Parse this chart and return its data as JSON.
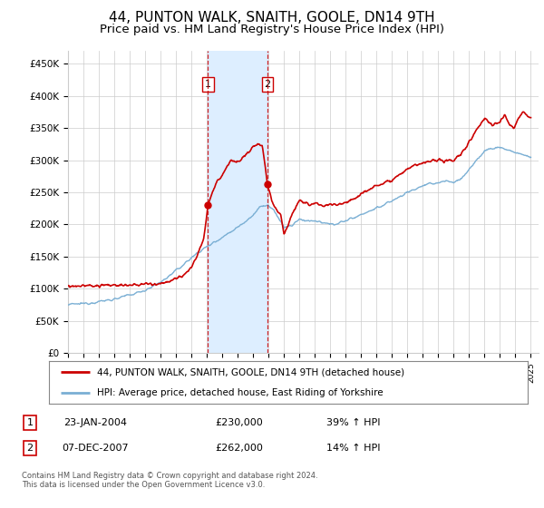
{
  "title": "44, PUNTON WALK, SNAITH, GOOLE, DN14 9TH",
  "subtitle": "Price paid vs. HM Land Registry's House Price Index (HPI)",
  "title_fontsize": 11,
  "subtitle_fontsize": 9.5,
  "ylabel_ticks": [
    "£0",
    "£50K",
    "£100K",
    "£150K",
    "£200K",
    "£250K",
    "£300K",
    "£350K",
    "£400K",
    "£450K"
  ],
  "ytick_values": [
    0,
    50000,
    100000,
    150000,
    200000,
    250000,
    300000,
    350000,
    400000,
    450000
  ],
  "ylim": [
    0,
    470000
  ],
  "xlim": [
    1995,
    2025.5
  ],
  "transaction1": {
    "date": "2004-01-23",
    "price": 230000,
    "label": "1",
    "x_year": 2004.07
  },
  "transaction2": {
    "date": "2007-12-07",
    "price": 262000,
    "label": "2",
    "x_year": 2007.93
  },
  "legend_label_red": "44, PUNTON WALK, SNAITH, GOOLE, DN14 9TH (detached house)",
  "legend_label_blue": "HPI: Average price, detached house, East Riding of Yorkshire",
  "table_row1": [
    "1",
    "23-JAN-2004",
    "£230,000",
    "39% ↑ HPI"
  ],
  "table_row2": [
    "2",
    "07-DEC-2007",
    "£262,000",
    "14% ↑ HPI"
  ],
  "footer": "Contains HM Land Registry data © Crown copyright and database right 2024.\nThis data is licensed under the Open Government Licence v3.0.",
  "red_color": "#cc0000",
  "blue_color": "#7aafd4",
  "blue_fill_color": "#ddeeff",
  "vline_color": "#cc0000",
  "background_color": "#ffffff",
  "grid_color": "#cccccc",
  "t1_marker_price": 230000,
  "t2_marker_price": 262000
}
